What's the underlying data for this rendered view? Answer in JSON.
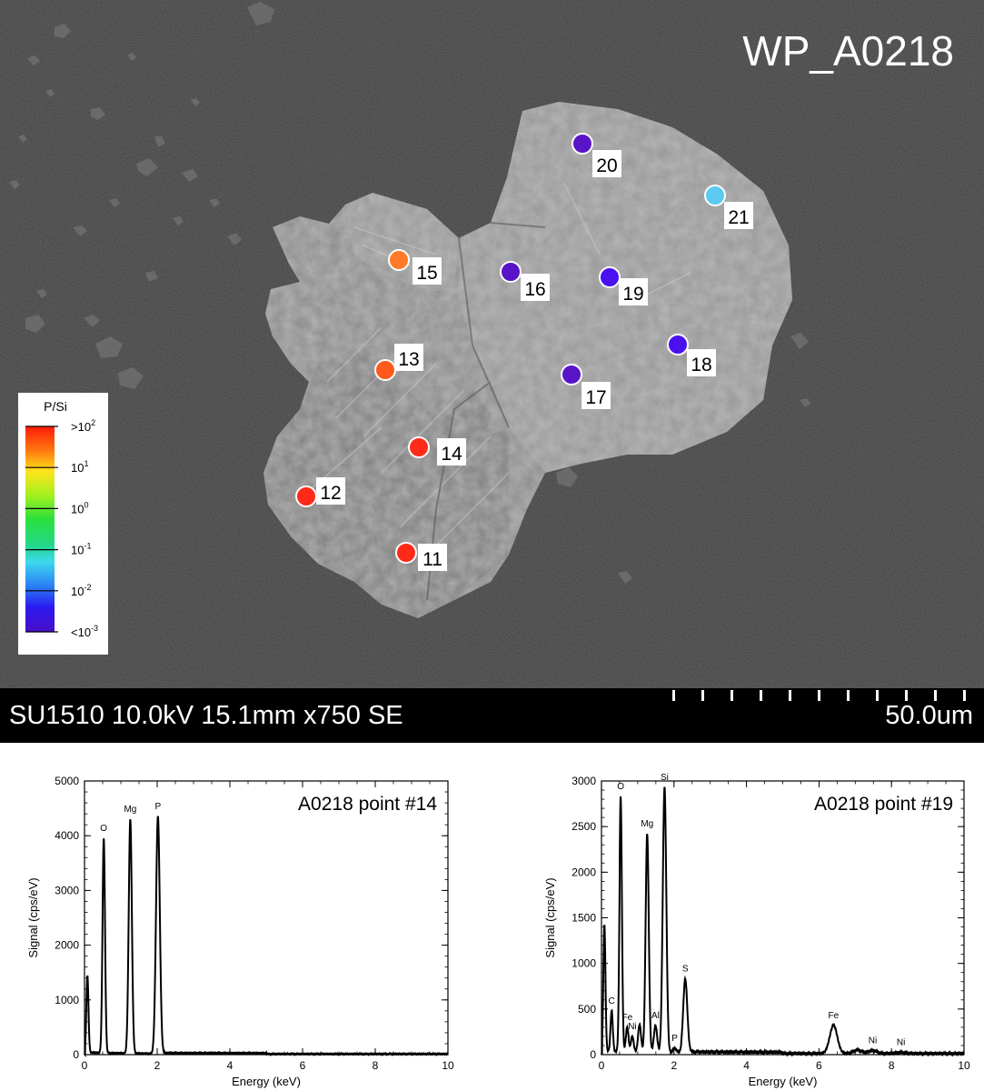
{
  "image_title": "WP_A0218",
  "info_bar": {
    "instrument": "SU1510 10.0kV 15.1mm x750 SE",
    "scale": "50.0um"
  },
  "colorbar": {
    "title": "P/Si",
    "labels": [
      {
        "base": ">10",
        "exp": "2"
      },
      {
        "base": "10",
        "exp": "1"
      },
      {
        "base": "10",
        "exp": "0"
      },
      {
        "base": "10",
        "exp": "-1"
      },
      {
        "base": "10",
        "exp": "-2"
      },
      {
        "base": "<10",
        "exp": "-3"
      }
    ]
  },
  "points": [
    {
      "label": "11",
      "color": "#ff2a1a"
    },
    {
      "label": "12",
      "color": "#ff2a1a"
    },
    {
      "label": "13",
      "color": "#ff5a1e"
    },
    {
      "label": "14",
      "color": "#ff2a1a"
    },
    {
      "label": "15",
      "color": "#ff7a28"
    },
    {
      "label": "16",
      "color": "#5a14c8"
    },
    {
      "label": "17",
      "color": "#5a14c8"
    },
    {
      "label": "18",
      "color": "#4a10ee"
    },
    {
      "label": "19",
      "color": "#4a10ee"
    },
    {
      "label": "20",
      "color": "#5a14c8"
    },
    {
      "label": "21",
      "color": "#5ccaf0"
    }
  ],
  "chart_data": [
    {
      "type": "line",
      "title": "A0218 point #14",
      "xlabel": "Energy (keV)",
      "ylabel": "Signal (cps/eV)",
      "xlim": [
        0,
        10
      ],
      "ylim": [
        0,
        5000
      ],
      "xticks": [
        0,
        2,
        4,
        6,
        8,
        10
      ],
      "yticks": [
        0,
        1000,
        2000,
        3000,
        4000,
        5000
      ],
      "peaks": [
        {
          "label": "",
          "x": 0.08,
          "y": 1450
        },
        {
          "label": "O",
          "x": 0.53,
          "y": 3950
        },
        {
          "label": "Mg",
          "x": 1.26,
          "y": 4300
        },
        {
          "label": "P",
          "x": 2.02,
          "y": 4350
        }
      ]
    },
    {
      "type": "line",
      "title": "A0218 point #19",
      "xlabel": "Energy (keV)",
      "ylabel": "Signal (cps/eV)",
      "xlim": [
        0,
        10
      ],
      "ylim": [
        0,
        3000
      ],
      "xticks": [
        0,
        2,
        4,
        6,
        8,
        10
      ],
      "yticks": [
        0,
        500,
        1000,
        1500,
        2000,
        2500,
        3000
      ],
      "peaks": [
        {
          "label": "",
          "x": 0.08,
          "y": 1430
        },
        {
          "label": "C",
          "x": 0.28,
          "y": 480
        },
        {
          "label": "O",
          "x": 0.53,
          "y": 2830
        },
        {
          "label": "Fe",
          "x": 0.71,
          "y": 300
        },
        {
          "label": "Ni",
          "x": 0.85,
          "y": 200
        },
        {
          "label": "",
          "x": 1.05,
          "y": 330
        },
        {
          "label": "Mg",
          "x": 1.26,
          "y": 2420
        },
        {
          "label": "Al",
          "x": 1.49,
          "y": 320
        },
        {
          "label": "Si",
          "x": 1.74,
          "y": 2930
        },
        {
          "label": "P",
          "x": 2.02,
          "y": 70
        },
        {
          "label": "S",
          "x": 2.31,
          "y": 830
        },
        {
          "label": "Fe",
          "x": 6.4,
          "y": 320
        },
        {
          "label": "",
          "x": 7.06,
          "y": 50
        },
        {
          "label": "Ni",
          "x": 7.48,
          "y": 45
        },
        {
          "label": "Ni",
          "x": 8.26,
          "y": 25
        }
      ]
    }
  ]
}
